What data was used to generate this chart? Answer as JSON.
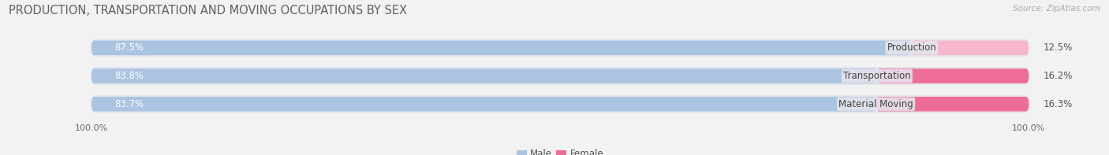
{
  "title": "PRODUCTION, TRANSPORTATION AND MOVING OCCUPATIONS BY SEX",
  "source": "Source: ZipAtlas.com",
  "categories": [
    "Production",
    "Transportation",
    "Material Moving"
  ],
  "male_pct": [
    87.5,
    83.8,
    83.7
  ],
  "female_pct": [
    12.5,
    16.2,
    16.3
  ],
  "male_color": "#aac4e2",
  "female_colors": [
    "#f7b8ce",
    "#ee6d96",
    "#ee6d96"
  ],
  "male_label": "Male",
  "female_label": "Female",
  "bg_color": "#f2f2f2",
  "bar_bg_color": "#e4e4ec",
  "title_fontsize": 10.5,
  "source_fontsize": 7.5,
  "label_fontsize": 8.5,
  "pct_fontsize": 8.5,
  "tick_fontsize": 8,
  "bar_height": 0.52,
  "left_tick": "100.0%",
  "right_tick": "100.0%",
  "total_width": 100
}
